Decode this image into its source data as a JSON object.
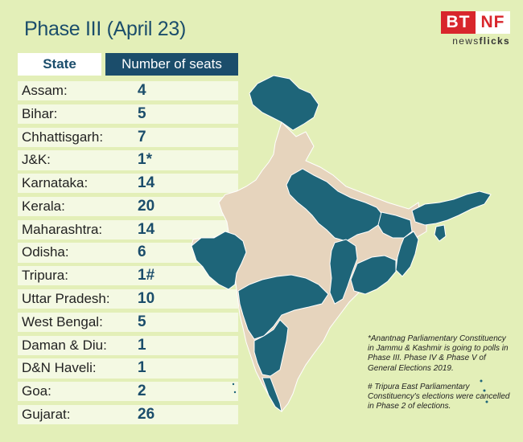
{
  "title": "Phase III (April 23)",
  "logo": {
    "left": "BT",
    "right": "NF",
    "sub_plain": "news",
    "sub_bold": "flicks"
  },
  "table": {
    "header_state": "State",
    "header_seats": "Number of seats",
    "rows": [
      {
        "state": "Assam:",
        "seats": "4"
      },
      {
        "state": "Bihar:",
        "seats": "5"
      },
      {
        "state": "Chhattisgarh:",
        "seats": "7"
      },
      {
        "state": "J&K:",
        "seats": "1*"
      },
      {
        "state": "Karnataka:",
        "seats": "14"
      },
      {
        "state": "Kerala:",
        "seats": "20"
      },
      {
        "state": "Maharashtra:",
        "seats": "14"
      },
      {
        "state": "Odisha:",
        "seats": "6"
      },
      {
        "state": "Tripura:",
        "seats": "1#"
      },
      {
        "state": "Uttar Pradesh:",
        "seats": "10"
      },
      {
        "state": "West Bengal:",
        "seats": "5"
      },
      {
        "state": "Daman & Diu:",
        "seats": "1"
      },
      {
        "state": "D&N Haveli:",
        "seats": "1"
      },
      {
        "state": "Goa:",
        "seats": "2"
      },
      {
        "state": "Gujarat:",
        "seats": "26"
      }
    ]
  },
  "notes": {
    "note1": "*Anantnag Parliamentary Constituency in Jammu & Kashmir is going to polls in Phase III. Phase IV & Phase V of General Elections 2019.",
    "note2": "# Tripura East Parliamentary Constituency's elections were cancelled in Phase 2 of elections."
  },
  "colors": {
    "background": "#e3efb8",
    "highlight": "#1e6579",
    "other": "#e6d4bd",
    "accent": "#1b4d6b"
  }
}
